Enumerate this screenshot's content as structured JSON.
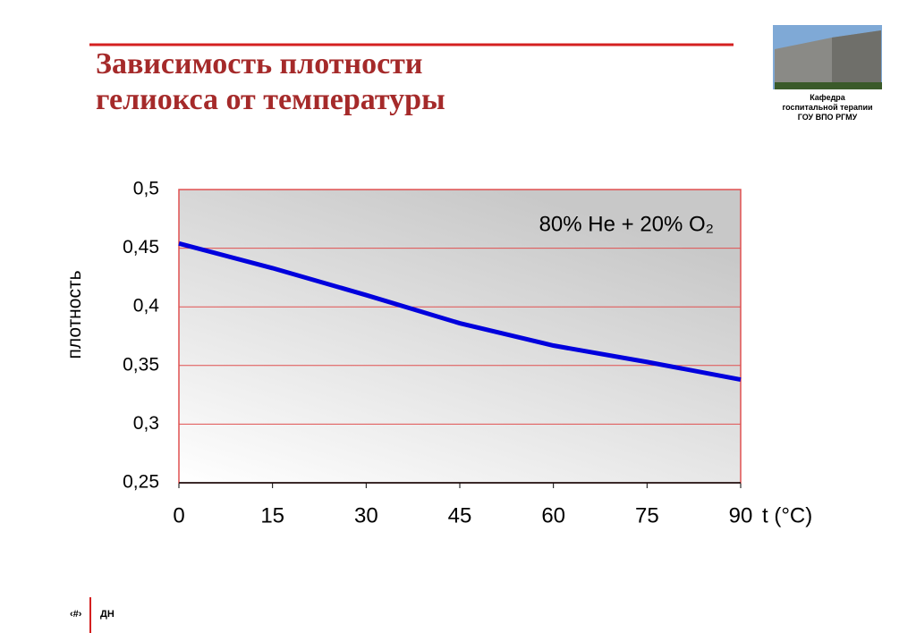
{
  "slide": {
    "title_lines": [
      "Зависимость плотности",
      "гелиокса от температуры"
    ],
    "logo_lines": [
      "Кафедра",
      "госпитальной терапии",
      "ГОУ ВПО РГМУ"
    ],
    "footer_page": "‹#›",
    "footer_author": "ДН"
  },
  "chart_data": {
    "type": "line",
    "annotation": "80% He + 20% O₂",
    "x_label": "t (°C)",
    "y_label": "плотность",
    "x": [
      0,
      15,
      30,
      45,
      60,
      75,
      90
    ],
    "series": [
      {
        "color": "#0000dd",
        "values": [
          0.454,
          0.433,
          0.41,
          0.386,
          0.367,
          0.353,
          0.338
        ]
      }
    ],
    "xlim": [
      0,
      90
    ],
    "xticks": [
      0,
      15,
      30,
      45,
      60,
      75,
      90
    ],
    "ylim": [
      0.25,
      0.5
    ],
    "yticks": [
      {
        "value": 0.25,
        "label": "0,25"
      },
      {
        "value": 0.3,
        "label": "0,3"
      },
      {
        "value": 0.35,
        "label": "0,35"
      },
      {
        "value": 0.4,
        "label": "0,4"
      },
      {
        "value": 0.45,
        "label": "0,45"
      },
      {
        "value": 0.5,
        "label": "0,5"
      }
    ],
    "grid": true,
    "grid_color": "#e05050"
  }
}
